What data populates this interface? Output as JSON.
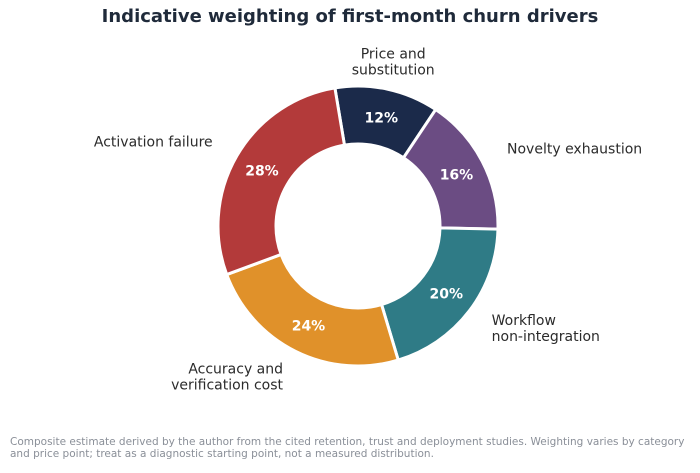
{
  "chart_data": {
    "type": "pie",
    "title": "Indicative weighting of first-month churn drivers",
    "slices": [
      {
        "label": [
          "Price and",
          "substitution"
        ],
        "value": 12,
        "display": "12%",
        "color": "#1b2a4a"
      },
      {
        "label": [
          "Novelty exhaustion"
        ],
        "value": 16,
        "display": "16%",
        "color": "#6b4c83"
      },
      {
        "label": [
          "Workflow",
          "non-integration"
        ],
        "value": 20,
        "display": "20%",
        "color": "#2f7b86"
      },
      {
        "label": [
          "Accuracy and",
          "verification cost"
        ],
        "value": 24,
        "display": "24%",
        "color": "#e0912a"
      },
      {
        "label": [
          "Activation failure"
        ],
        "value": 28,
        "display": "28%",
        "color": "#b33a3a"
      }
    ]
  },
  "note": "Composite estimate derived by the author from the cited retention, trust and deployment studies. Weighting varies by category and price point; treat as a diagnostic starting point, not a measured distribution."
}
